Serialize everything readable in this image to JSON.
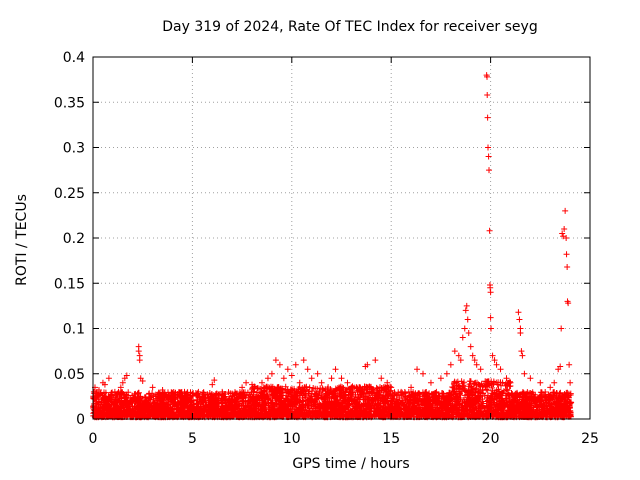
{
  "chart_data": {
    "type": "scatter",
    "title": "Day 319 of 2024, Rate Of TEC Index for receiver seyg",
    "xlabel": "GPS time / hours",
    "ylabel": "ROTI / TECUs",
    "xlim": [
      0,
      25
    ],
    "ylim": [
      0,
      0.4
    ],
    "xticks": [
      0,
      5,
      10,
      15,
      20,
      25
    ],
    "yticks": [
      0,
      0.05,
      0.1,
      0.15,
      0.2,
      0.25,
      0.3,
      0.35,
      0.4
    ],
    "ytick_labels": [
      "0",
      "0.05",
      "0.1",
      "0.15",
      "0.2",
      "0.25",
      "0.3",
      "0.35",
      "0.4"
    ],
    "grid": true,
    "marker": "+",
    "marker_color": "#ff0000",
    "series": [
      {
        "name": "ROTI",
        "points": [
          [
            0.1,
            0.035
          ],
          [
            0.2,
            0.03
          ],
          [
            0.3,
            0.032
          ],
          [
            0.5,
            0.04
          ],
          [
            0.6,
            0.038
          ],
          [
            0.8,
            0.045
          ],
          [
            1.1,
            0.03
          ],
          [
            1.4,
            0.035
          ],
          [
            1.5,
            0.04
          ],
          [
            1.6,
            0.045
          ],
          [
            1.7,
            0.048
          ],
          [
            2.3,
            0.08
          ],
          [
            2.3,
            0.075
          ],
          [
            2.35,
            0.07
          ],
          [
            2.35,
            0.065
          ],
          [
            2.4,
            0.045
          ],
          [
            2.5,
            0.042
          ],
          [
            3.0,
            0.035
          ],
          [
            3.5,
            0.032
          ],
          [
            4.0,
            0.025
          ],
          [
            4.5,
            0.022
          ],
          [
            5.0,
            0.028
          ],
          [
            5.5,
            0.025
          ],
          [
            6.0,
            0.038
          ],
          [
            6.1,
            0.043
          ],
          [
            6.5,
            0.03
          ],
          [
            7.0,
            0.028
          ],
          [
            7.5,
            0.035
          ],
          [
            7.7,
            0.04
          ],
          [
            8.0,
            0.038
          ],
          [
            8.5,
            0.04
          ],
          [
            8.8,
            0.045
          ],
          [
            9.0,
            0.05
          ],
          [
            9.2,
            0.065
          ],
          [
            9.4,
            0.06
          ],
          [
            9.6,
            0.045
          ],
          [
            9.8,
            0.055
          ],
          [
            10.0,
            0.048
          ],
          [
            10.2,
            0.06
          ],
          [
            10.4,
            0.04
          ],
          [
            10.6,
            0.065
          ],
          [
            10.8,
            0.055
          ],
          [
            11.0,
            0.045
          ],
          [
            11.3,
            0.05
          ],
          [
            11.5,
            0.04
          ],
          [
            12.0,
            0.045
          ],
          [
            12.2,
            0.055
          ],
          [
            12.5,
            0.045
          ],
          [
            12.8,
            0.04
          ],
          [
            13.0,
            0.035
          ],
          [
            13.5,
            0.03
          ],
          [
            13.7,
            0.058
          ],
          [
            13.8,
            0.06
          ],
          [
            14.2,
            0.065
          ],
          [
            14.5,
            0.045
          ],
          [
            14.8,
            0.04
          ],
          [
            15.0,
            0.035
          ],
          [
            15.5,
            0.03
          ],
          [
            16.0,
            0.035
          ],
          [
            16.3,
            0.055
          ],
          [
            16.6,
            0.05
          ],
          [
            17.0,
            0.04
          ],
          [
            17.5,
            0.045
          ],
          [
            17.8,
            0.05
          ],
          [
            18.0,
            0.06
          ],
          [
            18.2,
            0.075
          ],
          [
            18.4,
            0.07
          ],
          [
            18.5,
            0.065
          ],
          [
            18.6,
            0.09
          ],
          [
            18.7,
            0.1
          ],
          [
            18.75,
            0.12
          ],
          [
            18.8,
            0.125
          ],
          [
            18.85,
            0.11
          ],
          [
            18.9,
            0.095
          ],
          [
            19.0,
            0.08
          ],
          [
            19.1,
            0.07
          ],
          [
            19.2,
            0.065
          ],
          [
            19.3,
            0.06
          ],
          [
            19.5,
            0.055
          ],
          [
            19.8,
            0.38
          ],
          [
            19.82,
            0.378
          ],
          [
            19.83,
            0.358
          ],
          [
            19.85,
            0.333
          ],
          [
            19.87,
            0.3
          ],
          [
            19.9,
            0.29
          ],
          [
            19.92,
            0.275
          ],
          [
            19.95,
            0.208
          ],
          [
            19.97,
            0.148
          ],
          [
            19.98,
            0.145
          ],
          [
            20.0,
            0.14
          ],
          [
            20.0,
            0.112
          ],
          [
            20.02,
            0.1
          ],
          [
            20.1,
            0.07
          ],
          [
            20.2,
            0.065
          ],
          [
            20.3,
            0.06
          ],
          [
            20.5,
            0.055
          ],
          [
            20.8,
            0.045
          ],
          [
            21.0,
            0.04
          ],
          [
            21.4,
            0.118
          ],
          [
            21.45,
            0.11
          ],
          [
            21.5,
            0.1
          ],
          [
            21.5,
            0.095
          ],
          [
            21.55,
            0.075
          ],
          [
            21.6,
            0.07
          ],
          [
            21.7,
            0.05
          ],
          [
            22.0,
            0.045
          ],
          [
            22.5,
            0.04
          ],
          [
            23.0,
            0.035
          ],
          [
            23.2,
            0.04
          ],
          [
            23.4,
            0.055
          ],
          [
            23.5,
            0.058
          ],
          [
            23.55,
            0.1
          ],
          [
            23.6,
            0.205
          ],
          [
            23.65,
            0.202
          ],
          [
            23.7,
            0.21
          ],
          [
            23.75,
            0.23
          ],
          [
            23.8,
            0.2
          ],
          [
            23.82,
            0.182
          ],
          [
            23.85,
            0.168
          ],
          [
            23.87,
            0.13
          ],
          [
            23.9,
            0.128
          ],
          [
            23.95,
            0.06
          ],
          [
            24.0,
            0.04
          ]
        ]
      }
    ]
  }
}
